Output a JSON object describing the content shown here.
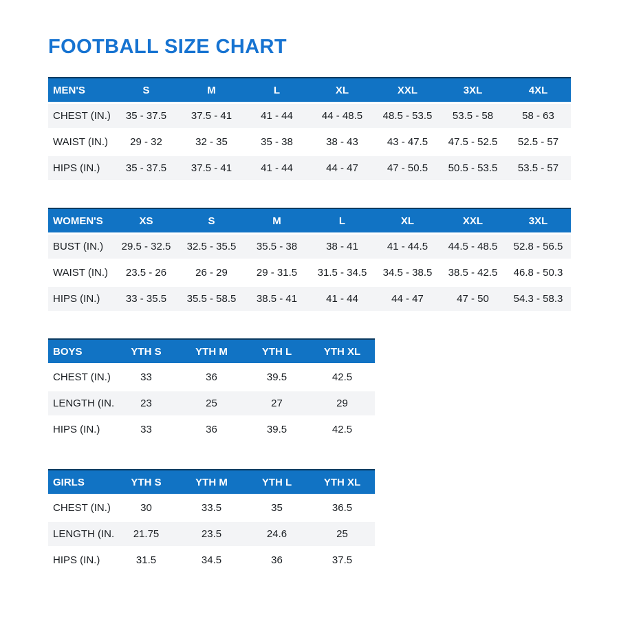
{
  "page": {
    "title": "FOOTBALL SIZE CHART"
  },
  "colors": {
    "title_blue": "#1673D1",
    "header_blue": "#1173C4",
    "header_border": "#0D3B61",
    "stripe_gray": "#F3F4F6",
    "text": "#1B1F23"
  },
  "tables": {
    "mens": {
      "label": "MEN'S",
      "sizes": [
        "S",
        "M",
        "L",
        "XL",
        "XXL",
        "3XL",
        "4XL"
      ],
      "rows": [
        {
          "label": "CHEST (IN.)",
          "values": [
            "35 - 37.5",
            "37.5 - 41",
            "41 - 44",
            "44 - 48.5",
            "48.5 - 53.5",
            "53.5 - 58",
            "58 - 63"
          ]
        },
        {
          "label": "WAIST (IN.)",
          "values": [
            "29 - 32",
            "32 - 35",
            "35 - 38",
            "38 - 43",
            "43 - 47.5",
            "47.5 - 52.5",
            "52.5 - 57"
          ]
        },
        {
          "label": "HIPS (IN.)",
          "values": [
            "35 - 37.5",
            "37.5 - 41",
            "41 - 44",
            "44 - 47",
            "47 - 50.5",
            "50.5 - 53.5",
            "53.5 - 57"
          ]
        }
      ]
    },
    "womens": {
      "label": "WOMEN'S",
      "sizes": [
        "XS",
        "S",
        "M",
        "L",
        "XL",
        "XXL",
        "3XL"
      ],
      "rows": [
        {
          "label": "BUST (IN.)",
          "values": [
            "29.5 - 32.5",
            "32.5 - 35.5",
            "35.5 - 38",
            "38 - 41",
            "41 - 44.5",
            "44.5 - 48.5",
            "52.8 - 56.5"
          ]
        },
        {
          "label": "WAIST (IN.)",
          "values": [
            "23.5 - 26",
            "26 - 29",
            "29 - 31.5",
            "31.5 - 34.5",
            "34.5 - 38.5",
            "38.5 - 42.5",
            "46.8 - 50.3"
          ]
        },
        {
          "label": "HIPS (IN.)",
          "values": [
            "33 - 35.5",
            "35.5 - 58.5",
            "38.5 - 41",
            "41 - 44",
            "44 - 47",
            "47 - 50",
            "54.3 - 58.3"
          ]
        }
      ]
    },
    "boys": {
      "label": "BOYS",
      "sizes": [
        "YTH S",
        "YTH M",
        "YTH L",
        "YTH XL"
      ],
      "rows": [
        {
          "label": "CHEST (IN.)",
          "values": [
            "33",
            "36",
            "39.5",
            "42.5"
          ]
        },
        {
          "label": "LENGTH (IN.)",
          "values": [
            "23",
            "25",
            "27",
            "29"
          ]
        },
        {
          "label": "HIPS (IN.)",
          "values": [
            "33",
            "36",
            "39.5",
            "42.5"
          ]
        }
      ]
    },
    "girls": {
      "label": "GIRLS",
      "sizes": [
        "YTH S",
        "YTH M",
        "YTH L",
        "YTH XL"
      ],
      "rows": [
        {
          "label": "CHEST (IN.)",
          "values": [
            "30",
            "33.5",
            "35",
            "36.5"
          ]
        },
        {
          "label": "LENGTH (IN.)",
          "values": [
            "21.75",
            "23.5",
            "24.6",
            "25"
          ]
        },
        {
          "label": "HIPS (IN.)",
          "values": [
            "31.5",
            "34.5",
            "36",
            "37.5"
          ]
        }
      ]
    }
  }
}
